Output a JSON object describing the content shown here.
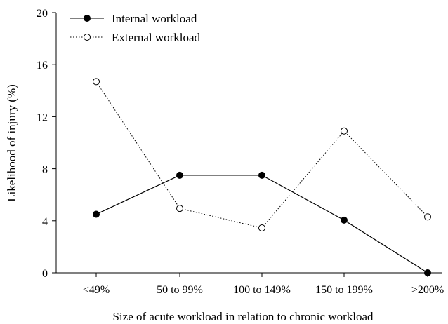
{
  "chart_data": {
    "type": "line",
    "categories": [
      "<49%",
      "50 to 99%",
      "100 to 149%",
      "150 to 199%",
      ">200%"
    ],
    "series": [
      {
        "name": "Internal workload",
        "values": [
          4.5,
          7.5,
          7.5,
          4.05,
          0
        ],
        "line_style": "solid",
        "marker": "filled-circle",
        "color": "#000000"
      },
      {
        "name": "External workload",
        "values": [
          14.7,
          4.95,
          3.45,
          10.9,
          4.3
        ],
        "line_style": "dotted",
        "marker": "open-circle",
        "color": "#000000"
      }
    ],
    "xlabel": "Size of acute workload in relation to chronic workload",
    "ylabel": "Likelihood of injury (%)",
    "ylim": [
      0,
      20
    ],
    "yticks": [
      0,
      4,
      8,
      12,
      16,
      20
    ],
    "grid": false,
    "legend_position": "top-left"
  }
}
